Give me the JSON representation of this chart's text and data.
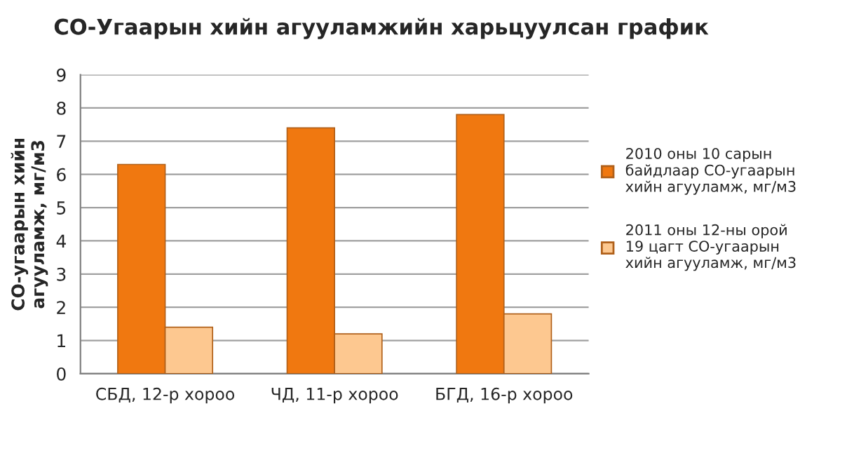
{
  "chart_data": {
    "type": "bar",
    "title": "СО-Угаарын хийн агууламжийн харьцуулсан график",
    "ylabel": "СО-угаарын хийн агууламж, мг/м3",
    "categories": [
      "СБД, 12-р хороо",
      "ЧД, 11-р хороо",
      "БГД, 16-р хороо"
    ],
    "series": [
      {
        "name": "2010 оны 10 сарын байдлаар СО-угаарын хийн агууламж, мг/м3",
        "color": "#f07810",
        "values": [
          6.3,
          7.4,
          7.8
        ]
      },
      {
        "name": "2011 оны 12-ны орой 19 цагт СО-угаарын хийн агууламж, мг/м3",
        "color": "#fdc890",
        "values": [
          1.4,
          1.2,
          1.8
        ]
      }
    ],
    "ylim": [
      0,
      9
    ],
    "yticks": [
      0,
      1,
      2,
      3,
      4,
      5,
      6,
      7,
      8,
      9
    ],
    "grid": "y",
    "legend": "right"
  }
}
